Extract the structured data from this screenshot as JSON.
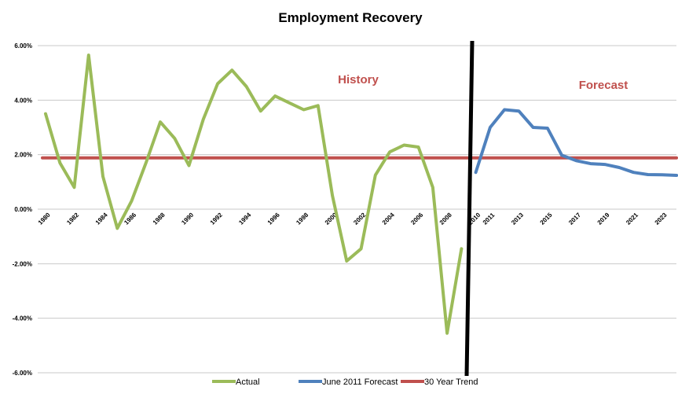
{
  "chart_data": {
    "type": "line",
    "title": "Employment Recovery",
    "xlabel": "",
    "ylabel": "",
    "ylim": [
      -0.06,
      0.06
    ],
    "y_ticks": [
      {
        "value": 0.06,
        "label": "6.00%"
      },
      {
        "value": 0.04,
        "label": "4.00%"
      },
      {
        "value": 0.02,
        "label": "2.00%"
      },
      {
        "value": 0.0,
        "label": "0.00%"
      },
      {
        "value": -0.02,
        "label": "-2.00%"
      },
      {
        "value": -0.04,
        "label": "-4.00%"
      },
      {
        "value": -0.06,
        "label": "-6.00%"
      }
    ],
    "x_ticks": [
      "1980",
      "1982",
      "1984",
      "1986",
      "1988",
      "1990",
      "1992",
      "1994",
      "1996",
      "1998",
      "2000",
      "2002",
      "2004",
      "2006",
      "2008",
      "2010",
      "2011",
      "2013",
      "2015",
      "2017",
      "2019",
      "2021",
      "2023"
    ],
    "grid": "horizontal",
    "legend_position": "bottom",
    "annotations": [
      {
        "text": "History",
        "color": "#c0504d"
      },
      {
        "text": "Forecast",
        "color": "#c0504d"
      }
    ],
    "divider": {
      "color": "#000000",
      "description": "vertical line separating history and forecast"
    },
    "series": [
      {
        "name": "Actual",
        "color": "#9bbb59",
        "x": [
          1980,
          1981,
          1982,
          1983,
          1984,
          1985,
          1986,
          1987,
          1988,
          1989,
          1990,
          1991,
          1992,
          1993,
          1994,
          1995,
          1996,
          1997,
          1998,
          1999,
          2000,
          2001,
          2002,
          2003,
          2004,
          2005,
          2006,
          2007,
          2008,
          2009
        ],
        "values": [
          0.035,
          0.017,
          0.008,
          0.0565,
          0.012,
          -0.007,
          0.003,
          0.017,
          0.032,
          0.026,
          0.016,
          0.033,
          0.046,
          0.051,
          0.045,
          0.036,
          0.0415,
          0.039,
          0.0365,
          0.038,
          0.005,
          -0.019,
          -0.0145,
          0.0125,
          0.021,
          0.0235,
          0.0228,
          0.008,
          -0.0455,
          -0.0145
        ]
      },
      {
        "name": "June 2011 Forecast",
        "color": "#4f81bd",
        "x": [
          2010,
          2011,
          2012,
          2013,
          2014,
          2015,
          2016,
          2017,
          2018,
          2019,
          2020,
          2021,
          2022,
          2023,
          2024
        ],
        "values": [
          0.0135,
          0.03,
          0.0365,
          0.036,
          0.03,
          0.0297,
          0.0198,
          0.0178,
          0.0167,
          0.0164,
          0.0153,
          0.0135,
          0.0127,
          0.0126,
          0.0124
        ]
      },
      {
        "name": "30 Year Trend",
        "color": "#c0504d",
        "x": [
          1980,
          2024
        ],
        "values": [
          0.0188,
          0.0188
        ]
      }
    ]
  }
}
